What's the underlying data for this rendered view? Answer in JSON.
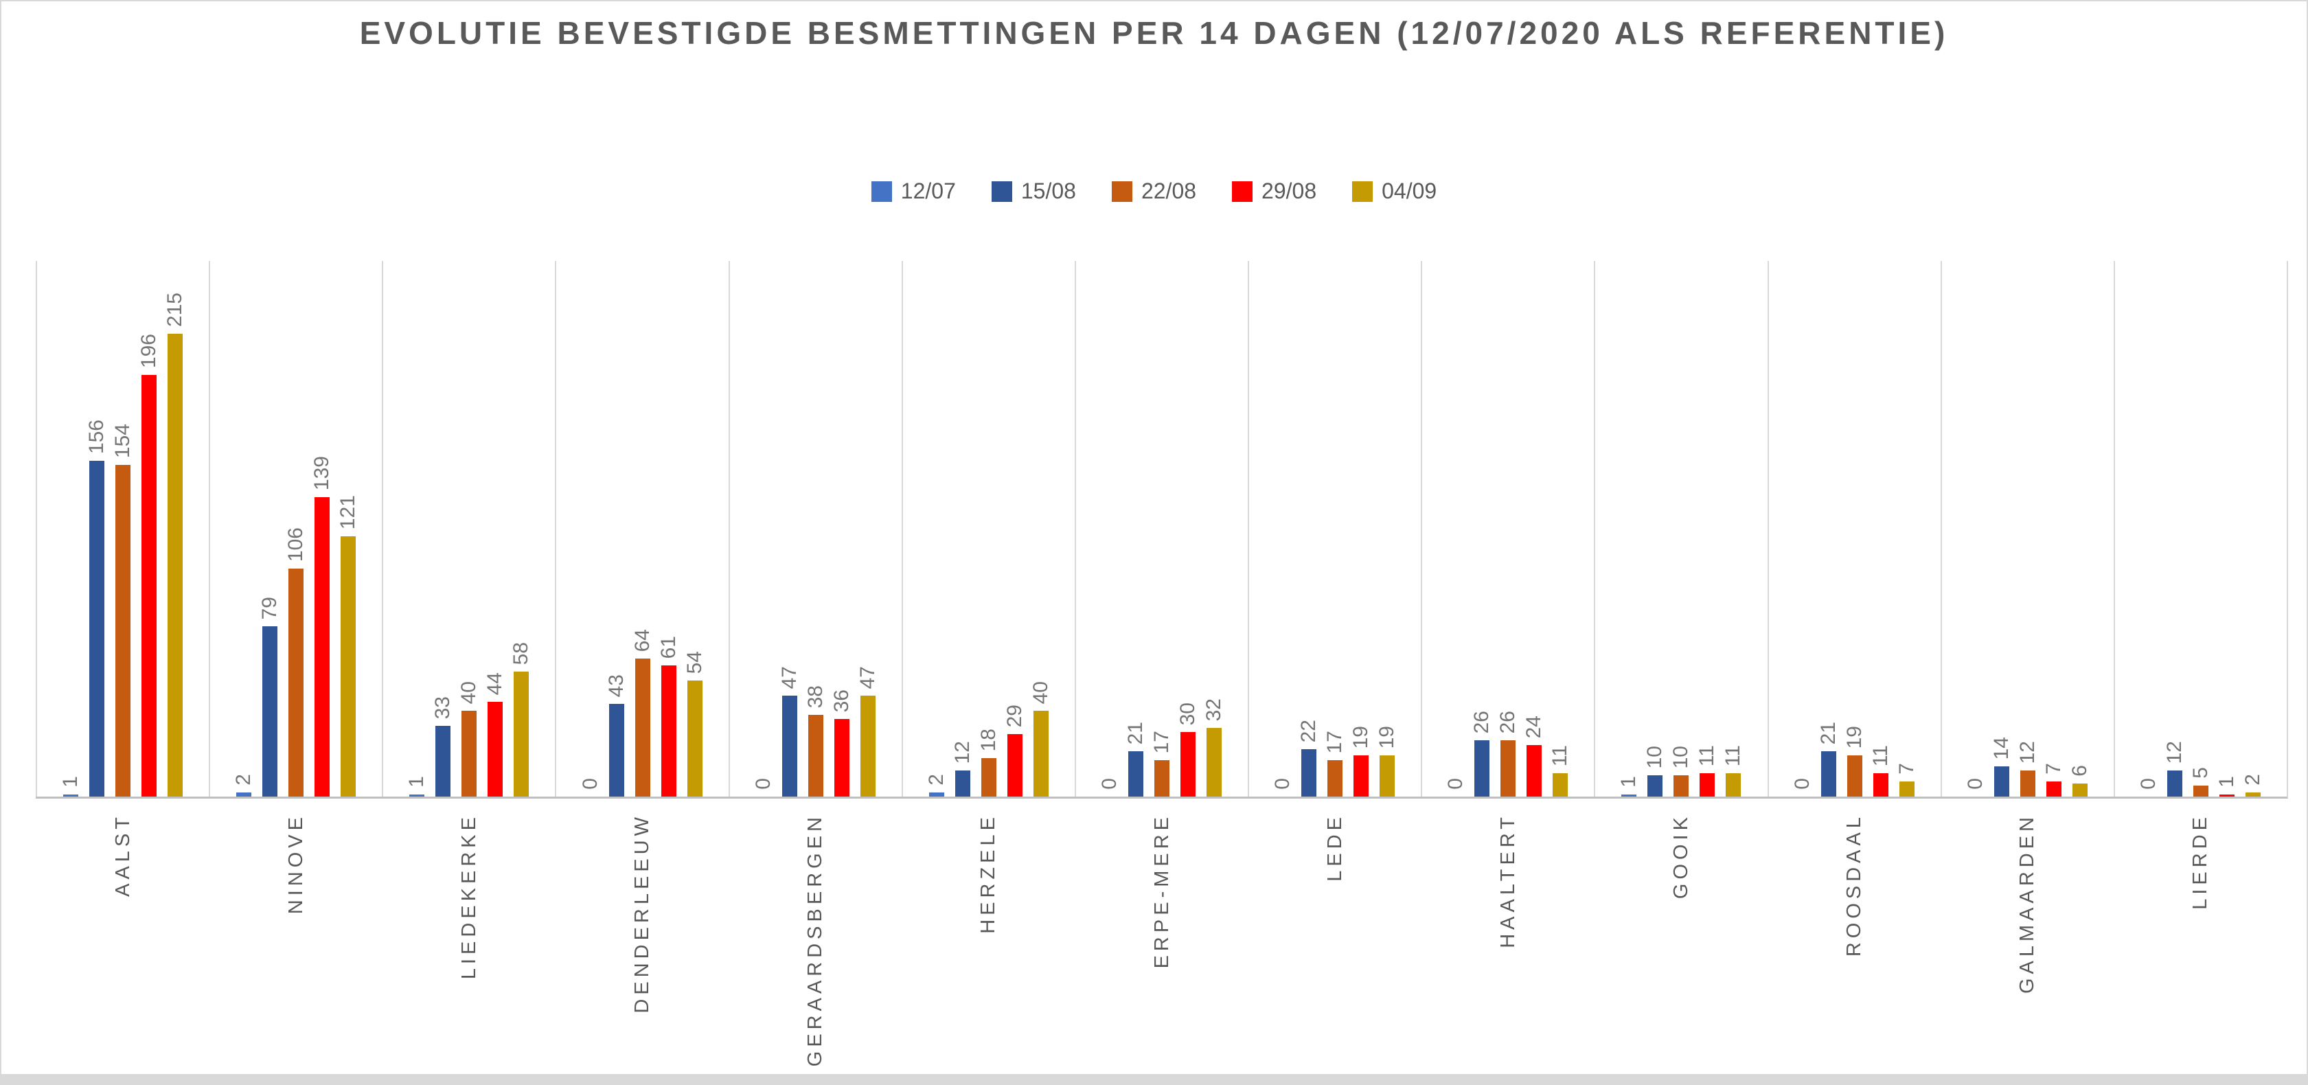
{
  "window": {
    "background": "#FFFFFF",
    "frame_color": "#D9D9D9",
    "bottom_strip_color": "#D9D9D9"
  },
  "chart_data": {
    "type": "bar",
    "title": "EVOLUTIE BEVESTIGDE BESMETTINGEN PER 14 DAGEN (12/07/2020 ALS REFERENTIE)",
    "categories": [
      "AALST",
      "NINOVE",
      "LIEDEKERKE",
      "DENDERLEEUW",
      "GERAARDSBERGEN",
      "HERZELE",
      "ERPE-MERE",
      "LEDE",
      "HAALTERT",
      "GOOIK",
      "ROOSDAAL",
      "GALMAARDEN",
      "LIERDE"
    ],
    "series": [
      {
        "name": "12/07",
        "color": "#4472C4",
        "values": [
          1,
          2,
          1,
          0,
          0,
          2,
          0,
          0,
          0,
          1,
          0,
          0,
          0
        ]
      },
      {
        "name": "15/08",
        "color": "#2F5597",
        "values": [
          156,
          79,
          33,
          43,
          47,
          12,
          21,
          22,
          26,
          10,
          21,
          14,
          12
        ]
      },
      {
        "name": "22/08",
        "color": "#C55A11",
        "values": [
          154,
          106,
          40,
          64,
          38,
          18,
          17,
          17,
          26,
          10,
          19,
          12,
          5
        ]
      },
      {
        "name": "29/08",
        "color": "#FF0000",
        "values": [
          196,
          139,
          44,
          61,
          36,
          29,
          30,
          19,
          24,
          11,
          11,
          7,
          1
        ]
      },
      {
        "name": "04/09",
        "color": "#C49B02",
        "values": [
          215,
          121,
          58,
          54,
          47,
          40,
          32,
          19,
          11,
          11,
          7,
          6,
          2
        ]
      }
    ],
    "ylim": [
      0,
      250
    ],
    "xlabel": "",
    "ylabel": "",
    "legend_position": "top-center",
    "grid": {
      "vertical_category_separators": true,
      "horizontal_gridlines": false
    },
    "value_labels": {
      "shown": true,
      "rotation": "vertical-bottom-to-top",
      "color": "#757575"
    },
    "category_labels": {
      "rotation": "vertical-bottom-to-top",
      "color": "#595959"
    },
    "axis": {
      "line_color": "#BFBFBF",
      "separator_color": "#D9D9D9",
      "y_axis_labels_visible": false
    }
  }
}
